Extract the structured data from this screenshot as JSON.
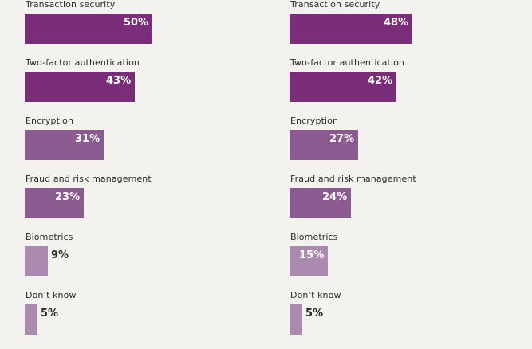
{
  "colors": {
    "bar_light": "#aa8aae",
    "bar_mid": "#8a5a90",
    "bar_dark": "#7a2d78",
    "background": "#f4f2ee",
    "value_text": "#ffffff"
  },
  "chart_data": [
    {
      "type": "bar",
      "orientation": "horizontal",
      "categories": [
        "Transaction security",
        "Two-factor authentication",
        "Encryption",
        "Fraud and risk management",
        "Biometrics",
        "Don’t know"
      ],
      "values": [
        50,
        43,
        31,
        23,
        9,
        5
      ],
      "value_labels": [
        "50%",
        "43%",
        "31%",
        "23%",
        "9%",
        "5%"
      ],
      "unit": "%",
      "xlim": [
        0,
        50
      ],
      "grid": false
    },
    {
      "type": "bar",
      "orientation": "horizontal",
      "categories": [
        "Transaction security",
        "Two-factor authentication",
        "Encryption",
        "Fraud and risk management",
        "Biometrics",
        "Don’t know"
      ],
      "values": [
        48,
        42,
        27,
        24,
        15,
        5
      ],
      "value_labels": [
        "48%",
        "42%",
        "27%",
        "24%",
        "15%",
        "5%"
      ],
      "unit": "%",
      "xlim": [
        0,
        50
      ],
      "grid": false
    }
  ]
}
